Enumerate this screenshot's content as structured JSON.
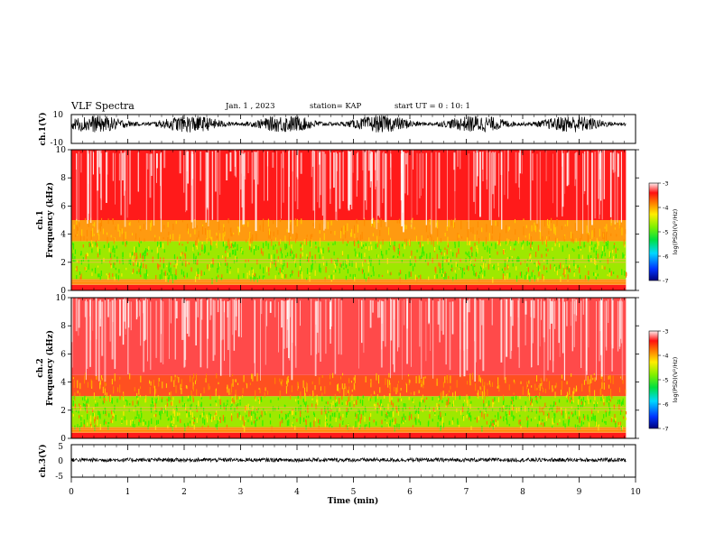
{
  "header": {
    "title": "VLF Spectra",
    "date": "Jan. 1 , 2023",
    "station": "station= KAP",
    "start": "start UT = 0 : 10: 1"
  },
  "chart_data": [
    {
      "type": "line",
      "panel": "ch1-waveform",
      "ylabel": "ch.1(V)",
      "ylim": [
        -10,
        10
      ],
      "yticks": [
        "10",
        "-10"
      ],
      "xlim": [
        0,
        10
      ],
      "x_extent_min": 9.83,
      "amplitude_band": [
        -2.5,
        9.5
      ]
    },
    {
      "type": "heatmap",
      "panel": "ch1-spectrogram",
      "ylabel": "ch.1\nFrequency (kHz)",
      "ylabel_ch": "ch.1",
      "ylabel_freq": "Frequency (kHz)",
      "ylim": [
        0,
        10
      ],
      "yticks": [
        "0",
        "2",
        "4",
        "6",
        "8",
        "10"
      ],
      "xlim": [
        0,
        10
      ],
      "x_extent_min": 9.83,
      "colorbar": {
        "label": "log(PSD)(V²/Hz)",
        "range": [
          -7,
          -3
        ],
        "ticks": [
          "-3",
          "-4",
          "-5",
          "-6",
          "-7"
        ]
      },
      "bands_kHz": [
        {
          "range": [
            0,
            0.4
          ],
          "level": "red"
        },
        {
          "range": [
            0.4,
            0.8
          ],
          "level": "orange"
        },
        {
          "range": [
            0.8,
            3.5
          ],
          "level": "green-yellow"
        },
        {
          "range": [
            3.5,
            5
          ],
          "level": "yellow-red"
        },
        {
          "range": [
            5,
            10
          ],
          "level": "red"
        }
      ]
    },
    {
      "type": "heatmap",
      "panel": "ch2-spectrogram",
      "ylabel": "ch.2\nFrequency (kHz)",
      "ylabel_ch": "ch.2",
      "ylabel_freq": "Frequency (kHz)",
      "ylim": [
        0,
        10
      ],
      "yticks": [
        "0",
        "2",
        "4",
        "6",
        "8",
        "10"
      ],
      "xlim": [
        0,
        10
      ],
      "x_extent_min": 9.83,
      "colorbar": {
        "label": "log(PSD)(V²/Hz)",
        "range": [
          -7,
          -3
        ],
        "ticks": [
          "-3",
          "-4",
          "-5",
          "-6",
          "-7"
        ]
      },
      "bands_kHz": [
        {
          "range": [
            0,
            0.4
          ],
          "level": "red"
        },
        {
          "range": [
            0.4,
            0.8
          ],
          "level": "orange"
        },
        {
          "range": [
            0.8,
            3
          ],
          "level": "green-yellow"
        },
        {
          "range": [
            3,
            4.5
          ],
          "level": "red-orange"
        },
        {
          "range": [
            4.5,
            10
          ],
          "level": "light-red"
        }
      ]
    },
    {
      "type": "line",
      "panel": "ch3-waveform",
      "ylabel": "ch.3(V)",
      "ylim": [
        -5,
        5
      ],
      "yticks": [
        "5",
        "0",
        "-5"
      ],
      "xlim": [
        0,
        10
      ],
      "x_extent_min": 9.83,
      "amplitude_band": [
        -0.3,
        0.9
      ]
    }
  ],
  "xaxis": {
    "label": "Time (min)",
    "ticks": [
      "0",
      "1",
      "2",
      "3",
      "4",
      "5",
      "6",
      "7",
      "8",
      "9",
      "10"
    ]
  },
  "colors": {
    "red": "#ff1a1a",
    "white": "#ffffff",
    "yellow": "#ffe600",
    "green": "#33ee00",
    "orange": "#ff8800",
    "trace": "#000000"
  }
}
